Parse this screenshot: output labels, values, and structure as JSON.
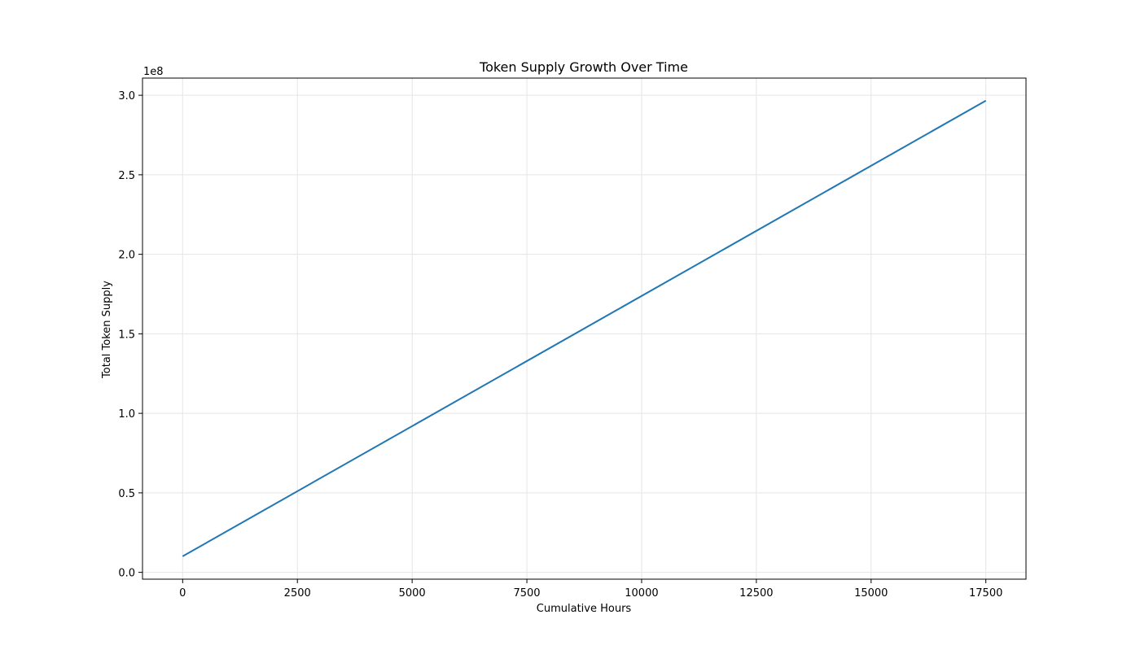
{
  "chart_data": {
    "type": "line",
    "title": "Token Supply Growth Over Time",
    "xlabel": "Cumulative Hours",
    "ylabel": "Total Token Supply",
    "y_offset_label": "1e8",
    "xlim": [
      -875,
      18375
    ],
    "ylim": [
      -0.0428,
      3.108
    ],
    "x_ticks": [
      0,
      2500,
      5000,
      7500,
      10000,
      12500,
      15000,
      17500
    ],
    "x_tick_labels": [
      "0",
      "2500",
      "5000",
      "7500",
      "10000",
      "12500",
      "15000",
      "17500"
    ],
    "y_ticks": [
      0.0,
      0.5,
      1.0,
      1.5,
      2.0,
      2.5,
      3.0
    ],
    "y_tick_labels": [
      "0.0",
      "0.5",
      "1.0",
      "1.5",
      "2.0",
      "2.5",
      "3.0"
    ],
    "grid": true,
    "legend": "none",
    "colors": {
      "line": "#1f77b4",
      "grid": "#e5e5e5",
      "axes": "#000000"
    },
    "series": [
      {
        "x": [
          0,
          17500
        ],
        "y": [
          0.101,
          2.966
        ]
      }
    ]
  }
}
